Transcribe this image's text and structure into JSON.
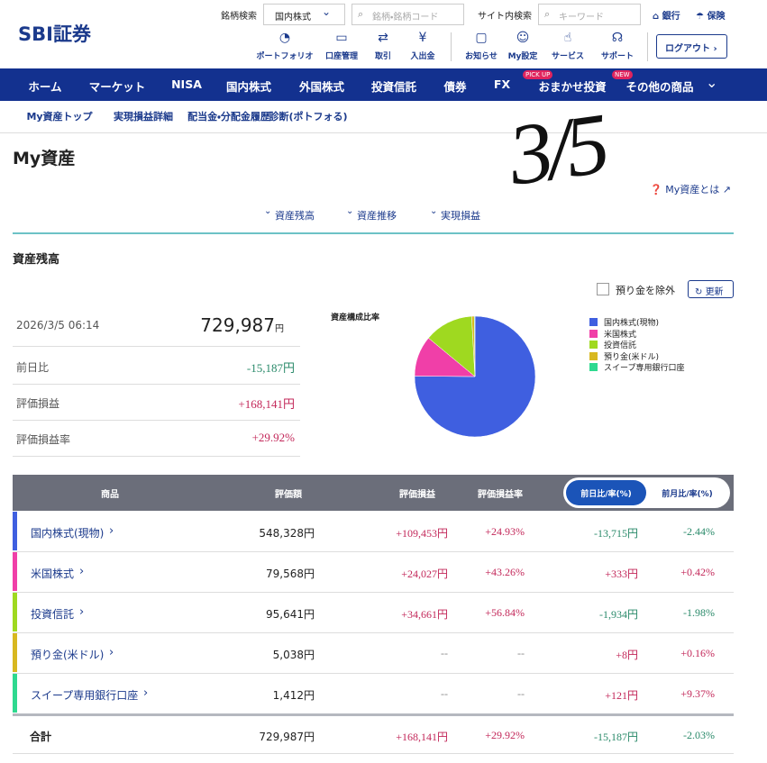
{
  "header": {
    "logo": "SBI証券",
    "stock_search_label": "銘柄検索",
    "market_select": "国内株式",
    "stock_search_placeholder": "銘柄・銘柄コード",
    "site_search_label": "サイト内検索",
    "site_search_placeholder": "キーワード",
    "bank": "銀行",
    "insurance": "保険",
    "icons": [
      "ポートフォリオ",
      "口座管理",
      "取引",
      "入出金",
      "お知らせ",
      "My設定",
      "サービス",
      "サポート"
    ],
    "logout": "ログアウト"
  },
  "nav": {
    "items": [
      "ホーム",
      "マーケット",
      "NISA",
      "国内株式",
      "外国株式",
      "投資信託",
      "債券",
      "FX",
      "おまかせ投資",
      "その他の商品"
    ],
    "badges": [
      "PICK UP",
      "NEW"
    ]
  },
  "subnav": [
    "My資産トップ",
    "実現損益詳細",
    "配当金・分配金履歴",
    "診断(ポトフォる)"
  ],
  "page": {
    "title": "My資産",
    "annotation": "3/5",
    "help_link": "My資産とは",
    "anchors": [
      "資産残高",
      "資産推移",
      "実現損益"
    ],
    "section_title": "資産残高",
    "exclude_deposit": "預り金を除外",
    "refresh": "更新"
  },
  "summary": {
    "datetime": "2026/3/5 06:14",
    "total": "729,987",
    "total_unit": "円",
    "rows": [
      [
        "前日比",
        "-15,187円"
      ],
      [
        "評価損益",
        "+168,141円"
      ],
      [
        "評価損益率",
        "+29.92%"
      ]
    ]
  },
  "pie": {
    "title": "資産構成比率",
    "labels": [
      "国内株式(現物)",
      "米国株式",
      "投資信託",
      "預り金(米ドル)",
      "スイープ専用銀行口座"
    ],
    "values": [
      548328,
      79568,
      95641,
      5038,
      1412
    ],
    "colors": [
      "#3f5fe0",
      "#f03fa8",
      "#9fd920",
      "#d8b820",
      "#2fd98f"
    ]
  },
  "table": {
    "headers": [
      "商品",
      "評価額",
      "評価損益",
      "評価損益率"
    ],
    "toggle": [
      "前日比/率(%)",
      "前月比/率(%)"
    ],
    "rows": [
      [
        "国内株式(現物)",
        "548,328円",
        "+109,453円",
        "+24.93%",
        "-13,715円",
        "-2.44%"
      ],
      [
        "米国株式",
        "79,568円",
        "+24,027円",
        "+43.26%",
        "+333円",
        "+0.42%"
      ],
      [
        "投資信託",
        "95,641円",
        "+34,661円",
        "+56.84%",
        "-1,934円",
        "-1.98%"
      ],
      [
        "預り金(米ドル)",
        "5,038円",
        "--",
        "--",
        "+8円",
        "+0.16%"
      ],
      [
        "スイープ専用銀行口座",
        "1,412円",
        "--",
        "--",
        "+121円",
        "+9.37%"
      ]
    ],
    "total": [
      "合計",
      "729,987円",
      "+168,141円",
      "+29.92%",
      "-15,187円",
      "-2.03%"
    ]
  }
}
